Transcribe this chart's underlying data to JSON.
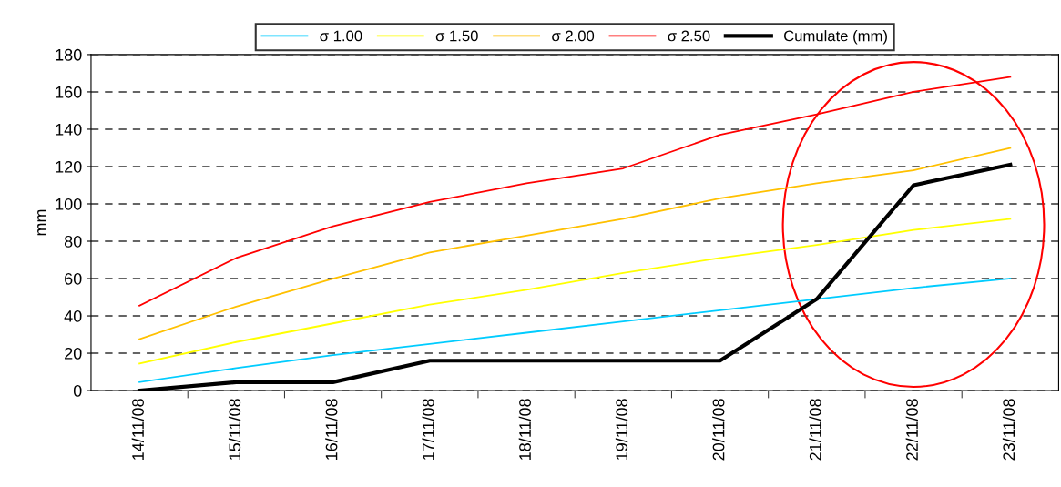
{
  "chart_data": {
    "type": "line",
    "ylabel": "mm",
    "categories": [
      "14/11/08",
      "15/11/08",
      "16/11/08",
      "17/11/08",
      "18/11/08",
      "19/11/08",
      "20/11/08",
      "21/11/08",
      "22/11/08",
      "23/11/08"
    ],
    "series": [
      {
        "name": "σ 1.00",
        "color": "#00ccff",
        "values": [
          4.5,
          12,
          19,
          25,
          31,
          37,
          43,
          49,
          55,
          60
        ]
      },
      {
        "name": "σ 1.50",
        "color": "#ffff00",
        "values": [
          14.5,
          26,
          36,
          46,
          54,
          63,
          71,
          78,
          86,
          92
        ]
      },
      {
        "name": "σ 2.00",
        "color": "#ffc000",
        "values": [
          27.5,
          45,
          60,
          74,
          83,
          92,
          103,
          111,
          118,
          130
        ]
      },
      {
        "name": "σ 2.50",
        "color": "#ff0000",
        "values": [
          45.5,
          71,
          88,
          101,
          111,
          119,
          137,
          148,
          160,
          168
        ]
      },
      {
        "name": "Cumulate (mm)",
        "color": "#000000",
        "values": [
          0,
          4.5,
          4.5,
          16,
          16,
          16,
          16,
          49,
          110,
          121
        ]
      }
    ],
    "ylim": [
      0,
      180
    ],
    "yticks": [
      0,
      20,
      40,
      60,
      80,
      100,
      120,
      140,
      160,
      180
    ],
    "grid": "y",
    "legend": "top",
    "marker": "none",
    "line_style": "solid"
  }
}
